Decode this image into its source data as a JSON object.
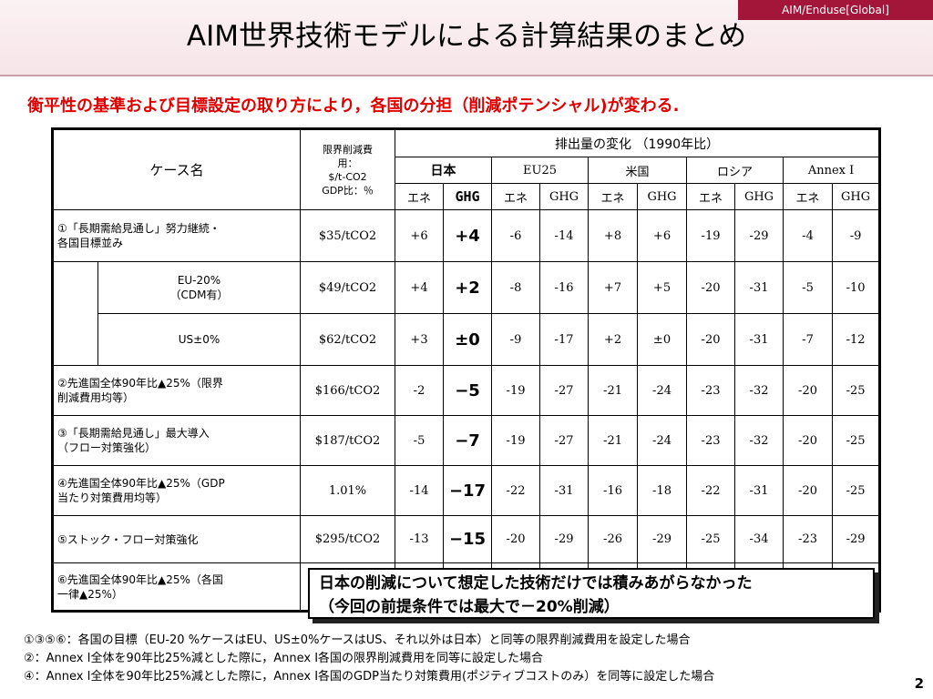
{
  "tag": "AIM/Enduse[Global]",
  "title": "AIM世界技術モデルによる計算結果のまとめ",
  "subtitle": "衡平性の基準および目標設定の取り方により，各国の分担（削減ポテンシャル)が変わる.",
  "table": {
    "case_header": "ケース名",
    "cost_header": [
      "限界削減費",
      "用：",
      "$/t-CO2",
      "GDP比：％"
    ],
    "emission_header": "排出量の変化 （1990年比）",
    "regions": [
      "日本",
      "EU25",
      "米国",
      "ロシア",
      "Annex Ⅰ"
    ],
    "sub_headers": [
      "エネ",
      "GHG"
    ],
    "rows": [
      {
        "label": [
          "①「長期需給見通し」努力継続・",
          "各国目標並み"
        ],
        "cost": "$35/tCO2",
        "values": [
          "+6",
          "+4",
          "-6",
          "-14",
          "+8",
          "+6",
          "-19",
          "-29",
          "-4",
          "-9"
        ]
      },
      {
        "label": [
          "EU-20%",
          "（CDM有）"
        ],
        "cost": "$49/tCO2",
        "values": [
          "+4",
          "+2",
          "-8",
          "-16",
          "+7",
          "+5",
          "-20",
          "-31",
          "-5",
          "-10"
        ]
      },
      {
        "label": [
          "US±0%"
        ],
        "cost": "$62/tCO2",
        "values": [
          "+3",
          "±0",
          "-9",
          "-17",
          "+2",
          "±0",
          "-20",
          "-31",
          "-7",
          "-12"
        ]
      },
      {
        "label": [
          "②先進国全体90年比▲25%（限界",
          "削減費用均等）"
        ],
        "cost": "$166/tCO2",
        "values": [
          "-2",
          "−5",
          "-19",
          "-27",
          "-21",
          "-24",
          "-23",
          "-32",
          "-20",
          "-25"
        ]
      },
      {
        "label": [
          "③「長期需給見通し」最大導入",
          "（フロー対策強化）"
        ],
        "cost": "$187/tCO2",
        "values": [
          "-5",
          "−7",
          "-19",
          "-27",
          "-21",
          "-24",
          "-23",
          "-32",
          "-20",
          "-25"
        ]
      },
      {
        "label": [
          "④先進国全体90年比▲25%（GDP",
          "当たり対策費用均等）"
        ],
        "cost": "1.01%",
        "values": [
          "-14",
          "−17",
          "-22",
          "-31",
          "-16",
          "-18",
          "-22",
          "-31",
          "-20",
          "-25"
        ]
      },
      {
        "label": [
          "⑤ストック・フロー対策強化"
        ],
        "cost": "$295/tCO2",
        "values": [
          "-13",
          "−15",
          "-20",
          "-29",
          "-26",
          "-29",
          "-25",
          "-34",
          "-23",
          "-29"
        ]
      },
      {
        "label": [
          "⑥先進国全体90年比▲25%（各国",
          "一律▲25%）"
        ],
        "cost": "",
        "values": [
          "",
          "",
          "",
          "",
          "",
          "",
          "",
          "",
          "",
          ""
        ]
      }
    ]
  },
  "callout": [
    "日本の削減について想定した技術だけでは積みあがらなかった",
    "（今回の前提条件では最大で－20%削減）"
  ],
  "notes": [
    "①③⑤⑥：各国の目標（EU-20 %ケースはEU、US±0%ケースはUS、それ以外は日本）と同等の限界削減費用を設定した場合",
    "②：Annex I全体を90年比25%減とした際に，Annex I各国の限界削減費用を同等に設定した場合",
    "④：Annex I全体を90年比25%減とした際に，Annex I各国のGDP当たり対策費用(ポジティブコストのみ）を同等に設定した場合"
  ],
  "page_number": "2"
}
